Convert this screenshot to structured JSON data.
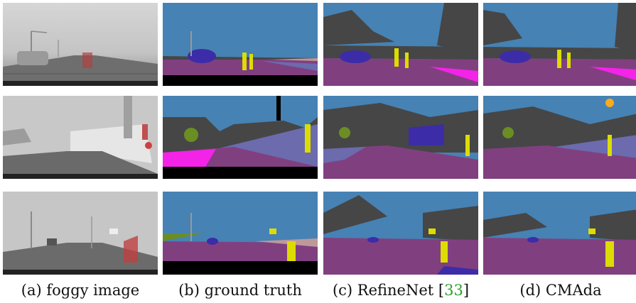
{
  "colors": {
    "sky": "#4682b4",
    "road": "#804080",
    "sidewalk": "#f423e8",
    "building": "#464646",
    "wall": "#6b6bae",
    "fence": "#be9999",
    "pole": "#999999",
    "traffic_sign": "#dcdc00",
    "traffic_light": "#faaa1e",
    "vegetation": "#6b8e23",
    "car": "#3c2ca8",
    "void": "#000000",
    "fog": "#c8c8c8",
    "cite": "#2ca02c"
  },
  "captions": {
    "a": "(a) foggy image",
    "b": "(b) ground truth",
    "c_prefix": "(c) RefineNet [",
    "c_cite": "33",
    "c_suffix": "]",
    "d": "(d) CMAda"
  }
}
